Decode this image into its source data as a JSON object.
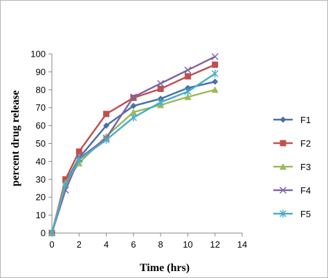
{
  "chart_data": {
    "type": "line",
    "xlabel": "Time (hrs)",
    "ylabel": "percent drug release",
    "xlim": [
      0,
      14
    ],
    "ylim": [
      0,
      100
    ],
    "x_ticks": [
      0,
      2,
      4,
      6,
      8,
      10,
      12,
      14
    ],
    "y_ticks": [
      0,
      10,
      20,
      30,
      40,
      50,
      60,
      70,
      80,
      90,
      100
    ],
    "grid": false,
    "legend_position": "right",
    "series": [
      {
        "name": "F1",
        "color": "#4572A7",
        "marker": "diamond",
        "x": [
          0,
          1,
          2,
          4,
          6,
          8,
          10,
          12
        ],
        "y": [
          0,
          28,
          42,
          60,
          71,
          75,
          81,
          84.5
        ]
      },
      {
        "name": "F2",
        "color": "#C0504D",
        "marker": "square",
        "x": [
          0,
          1,
          2,
          4,
          6,
          8,
          10,
          12
        ],
        "y": [
          0,
          30,
          45.5,
          66.5,
          75.5,
          80.5,
          87.5,
          94
        ]
      },
      {
        "name": "F3",
        "color": "#9BBB59",
        "marker": "triangle",
        "x": [
          0,
          1,
          2,
          4,
          6,
          8,
          10,
          12
        ],
        "y": [
          0,
          28,
          39,
          54,
          67.5,
          71.5,
          76,
          80
        ]
      },
      {
        "name": "F4",
        "color": "#8064A2",
        "marker": "x",
        "x": [
          0,
          1,
          2,
          4,
          6,
          8,
          10,
          12
        ],
        "y": [
          0,
          24,
          41.5,
          53,
          76,
          83.5,
          91,
          98.5
        ]
      },
      {
        "name": "F5",
        "color": "#4BACC6",
        "marker": "star",
        "x": [
          0,
          1,
          2,
          4,
          6,
          8,
          10,
          12
        ],
        "y": [
          0,
          27,
          41,
          52,
          64.5,
          73,
          79,
          89
        ]
      }
    ]
  }
}
